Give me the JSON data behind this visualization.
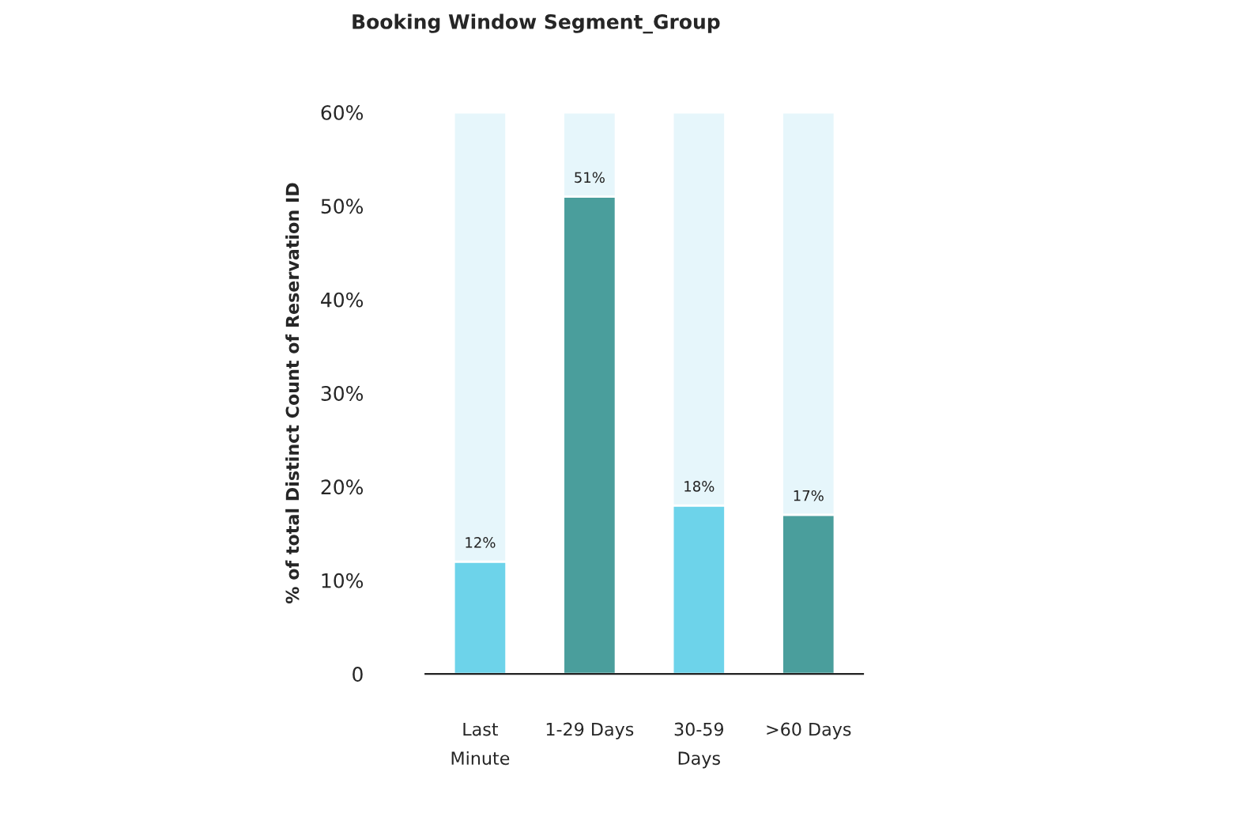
{
  "chart_data": {
    "type": "bar",
    "title": "Booking Window Segment_Group",
    "ylabel": "% of total Distinct Count of Reservation ID",
    "categories": [
      "Last\nMinute",
      "1-29 Days",
      "30-59\nDays",
      ">60 Days"
    ],
    "series": [
      {
        "colors": [
          "#6dd3ea",
          "#4a9e9c",
          "#6dd3ea",
          "#4a9e9c"
        ],
        "values": [
          12,
          51,
          18,
          17
        ],
        "value_labels": [
          "12%",
          "51%",
          "18%",
          "17%"
        ]
      },
      {
        "color": "#e6f6fb",
        "values": [
          48,
          9,
          42,
          43
        ]
      }
    ],
    "stacked": true,
    "ylim": [
      0,
      60
    ],
    "yticks": [
      {
        "value": 0,
        "label": "0"
      },
      {
        "value": 10,
        "label": "10%"
      },
      {
        "value": 20,
        "label": "20%"
      },
      {
        "value": 30,
        "label": "30%"
      },
      {
        "value": 40,
        "label": "40%"
      },
      {
        "value": 50,
        "label": "50%"
      },
      {
        "value": 60,
        "label": "60%"
      }
    ],
    "grid": false,
    "legend": false
  }
}
